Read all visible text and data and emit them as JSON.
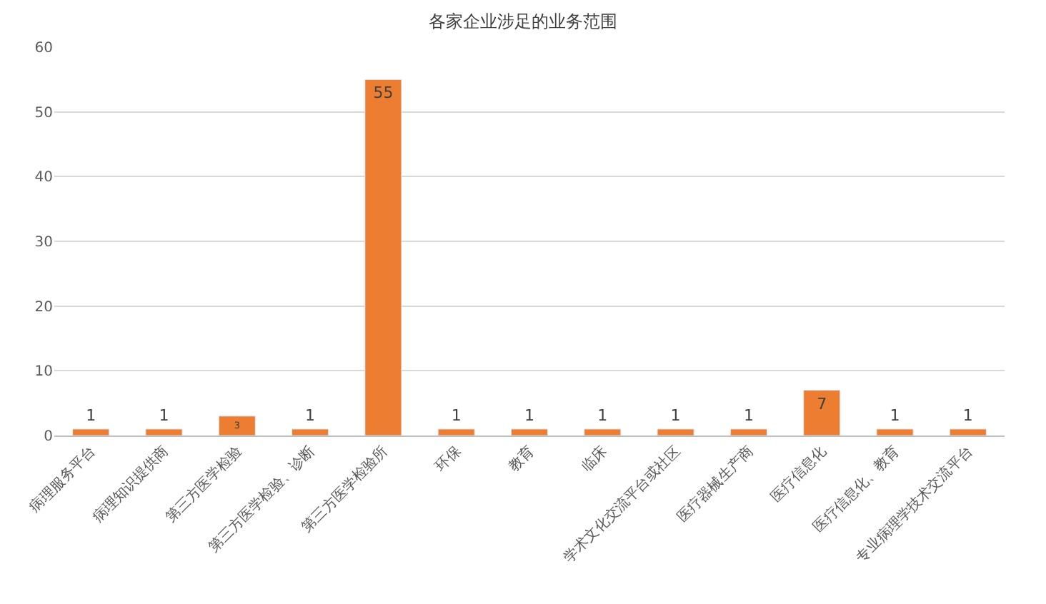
{
  "chart_data": {
    "type": "bar",
    "title": "各家企业涉足的业务范围",
    "categories": [
      "病理服务平台",
      "病理知识提供商",
      "第三方医学检验",
      "第三方医学检验、诊断",
      "第三方医学检验所",
      "环保",
      "教育",
      "临床",
      "学术文化交流平台或社区",
      "医疗器械生产商",
      "医疗信息化",
      "医疗信息化、教育",
      "专业病理学技术交流平台"
    ],
    "values": [
      1,
      1,
      3,
      1,
      55,
      1,
      1,
      1,
      1,
      1,
      7,
      1,
      1
    ],
    "color": "#ed7d31",
    "ylim": [
      0,
      60
    ],
    "yticks": [
      0,
      10,
      20,
      30,
      40,
      50,
      60
    ],
    "grid": "y",
    "data_labels": true
  }
}
